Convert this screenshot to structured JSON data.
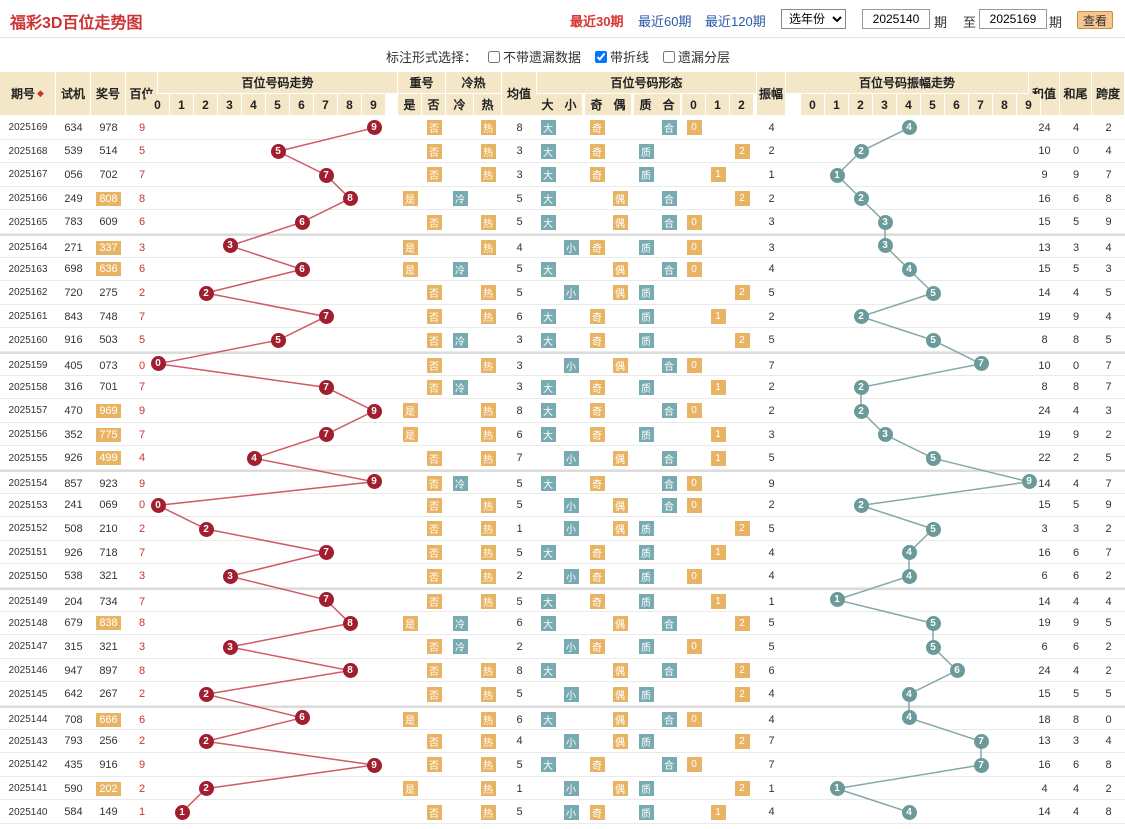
{
  "header": {
    "title": "福彩3D百位走势图",
    "links": [
      "最近30期",
      "最近60期",
      "最近120期"
    ],
    "active_link": 0,
    "year_select": "选年份",
    "from_issue": "2025140",
    "to_issue": "2025169",
    "label_period": "期",
    "label_to": "至",
    "view_label": "查看"
  },
  "options": {
    "label": "标注形式选择：",
    "items": [
      {
        "label": "不带遗漏数据",
        "checked": false
      },
      {
        "label": "带折线",
        "checked": true
      },
      {
        "label": "遗漏分层",
        "checked": false
      }
    ]
  },
  "columns": {
    "issue": "期号",
    "trial": "试机",
    "prize": "奖号",
    "hundred": "百位",
    "trend": "百位号码走势",
    "repeat": "重号",
    "repeat_sub": [
      "是",
      "否"
    ],
    "coldhot": "冷热",
    "coldhot_sub": [
      "冷",
      "热"
    ],
    "avg": "均值",
    "shape": "百位号码形态",
    "shape_sub": [
      "大",
      "小",
      "奇",
      "偶",
      "质",
      "合",
      "0",
      "1",
      "2"
    ],
    "amp": "振幅",
    "amptrend": "百位号码振幅走势",
    "sum": "和值",
    "tail": "和尾",
    "span": "跨度",
    "digits": [
      "0",
      "1",
      "2",
      "3",
      "4",
      "5",
      "6",
      "7",
      "8",
      "9"
    ]
  },
  "rows": [
    {
      "issue": "2025169",
      "trial": "634",
      "prize": "978",
      "h": 9,
      "hl": false,
      "amp": 4,
      "sum": 24,
      "tail": 4,
      "span": 2
    },
    {
      "issue": "2025168",
      "trial": "539",
      "prize": "514",
      "h": 5,
      "hl": false,
      "amp": 2,
      "sum": 10,
      "tail": 0,
      "span": 4
    },
    {
      "issue": "2025167",
      "trial": "056",
      "prize": "702",
      "h": 7,
      "hl": false,
      "amp": 1,
      "sum": 9,
      "tail": 9,
      "span": 7
    },
    {
      "issue": "2025166",
      "trial": "249",
      "prize": "808",
      "h": 8,
      "hl": true,
      "amp": 2,
      "sum": 16,
      "tail": 6,
      "span": 8
    },
    {
      "issue": "2025165",
      "trial": "783",
      "prize": "609",
      "h": 6,
      "hl": false,
      "amp": 3,
      "sum": 15,
      "tail": 5,
      "span": 9
    },
    {
      "issue": "2025164",
      "trial": "271",
      "prize": "337",
      "h": 3,
      "hl": true,
      "amp": 3,
      "sum": 13,
      "tail": 3,
      "span": 4
    },
    {
      "issue": "2025163",
      "trial": "698",
      "prize": "636",
      "h": 6,
      "hl": true,
      "amp": 4,
      "sum": 15,
      "tail": 5,
      "span": 3
    },
    {
      "issue": "2025162",
      "trial": "720",
      "prize": "275",
      "h": 2,
      "hl": false,
      "amp": 5,
      "sum": 14,
      "tail": 4,
      "span": 5
    },
    {
      "issue": "2025161",
      "trial": "843",
      "prize": "748",
      "h": 7,
      "hl": false,
      "amp": 2,
      "sum": 19,
      "tail": 9,
      "span": 4
    },
    {
      "issue": "2025160",
      "trial": "916",
      "prize": "503",
      "h": 5,
      "hl": false,
      "amp": 5,
      "sum": 8,
      "tail": 8,
      "span": 5
    },
    {
      "issue": "2025159",
      "trial": "405",
      "prize": "073",
      "h": 0,
      "hl": false,
      "amp": 7,
      "sum": 10,
      "tail": 0,
      "span": 7
    },
    {
      "issue": "2025158",
      "trial": "316",
      "prize": "701",
      "h": 7,
      "hl": false,
      "amp": 2,
      "sum": 8,
      "tail": 8,
      "span": 7
    },
    {
      "issue": "2025157",
      "trial": "470",
      "prize": "969",
      "h": 9,
      "hl": true,
      "amp": 2,
      "sum": 24,
      "tail": 4,
      "span": 3
    },
    {
      "issue": "2025156",
      "trial": "352",
      "prize": "775",
      "h": 7,
      "hl": true,
      "amp": 3,
      "sum": 19,
      "tail": 9,
      "span": 2
    },
    {
      "issue": "2025155",
      "trial": "926",
      "prize": "499",
      "h": 4,
      "hl": true,
      "amp": 5,
      "sum": 22,
      "tail": 2,
      "span": 5
    },
    {
      "issue": "2025154",
      "trial": "857",
      "prize": "923",
      "h": 9,
      "hl": false,
      "amp": 9,
      "sum": 14,
      "tail": 4,
      "span": 7
    },
    {
      "issue": "2025153",
      "trial": "241",
      "prize": "069",
      "h": 0,
      "hl": false,
      "amp": 2,
      "sum": 15,
      "tail": 5,
      "span": 9
    },
    {
      "issue": "2025152",
      "trial": "508",
      "prize": "210",
      "h": 2,
      "hl": false,
      "amp": 5,
      "sum": 3,
      "tail": 3,
      "span": 2
    },
    {
      "issue": "2025151",
      "trial": "926",
      "prize": "718",
      "h": 7,
      "hl": false,
      "amp": 4,
      "sum": 16,
      "tail": 6,
      "span": 7
    },
    {
      "issue": "2025150",
      "trial": "538",
      "prize": "321",
      "h": 3,
      "hl": false,
      "amp": 4,
      "sum": 6,
      "tail": 6,
      "span": 2
    },
    {
      "issue": "2025149",
      "trial": "204",
      "prize": "734",
      "h": 7,
      "hl": false,
      "amp": 1,
      "sum": 14,
      "tail": 4,
      "span": 4
    },
    {
      "issue": "2025148",
      "trial": "679",
      "prize": "838",
      "h": 8,
      "hl": true,
      "amp": 5,
      "sum": 19,
      "tail": 9,
      "span": 5
    },
    {
      "issue": "2025147",
      "trial": "315",
      "prize": "321",
      "h": 3,
      "hl": false,
      "amp": 5,
      "sum": 6,
      "tail": 6,
      "span": 2
    },
    {
      "issue": "2025146",
      "trial": "947",
      "prize": "897",
      "h": 8,
      "hl": false,
      "amp": 6,
      "sum": 24,
      "tail": 4,
      "span": 2
    },
    {
      "issue": "2025145",
      "trial": "642",
      "prize": "267",
      "h": 2,
      "hl": false,
      "amp": 4,
      "sum": 15,
      "tail": 5,
      "span": 5
    },
    {
      "issue": "2025144",
      "trial": "708",
      "prize": "666",
      "h": 6,
      "hl": true,
      "amp": 4,
      "sum": 18,
      "tail": 8,
      "span": 0
    },
    {
      "issue": "2025143",
      "trial": "793",
      "prize": "256",
      "h": 2,
      "hl": false,
      "amp": 7,
      "sum": 13,
      "tail": 3,
      "span": 4
    },
    {
      "issue": "2025142",
      "trial": "435",
      "prize": "916",
      "h": 9,
      "hl": false,
      "amp": 7,
      "sum": 16,
      "tail": 6,
      "span": 8
    },
    {
      "issue": "2025141",
      "trial": "590",
      "prize": "202",
      "h": 2,
      "hl": true,
      "amp": 1,
      "sum": 4,
      "tail": 4,
      "span": 2
    },
    {
      "issue": "2025140",
      "trial": "584",
      "prize": "149",
      "h": 1,
      "hl": false,
      "amp": 4,
      "sum": 14,
      "tail": 4,
      "span": 8
    }
  ],
  "colors": {
    "red": "#a01e2e",
    "teal": "#6a9a9a",
    "tag_orange": "#e8b464",
    "tag_teal": "#78aab2",
    "header_bg": "#f3e7c8"
  }
}
